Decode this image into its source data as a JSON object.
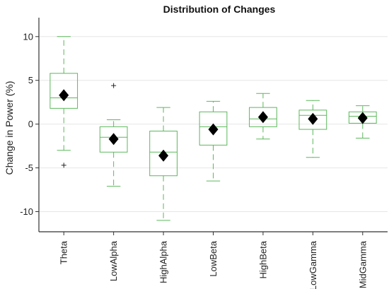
{
  "chart_data": {
    "type": "box",
    "title": "Distribution of Changes",
    "xlabel": "",
    "ylabel": "Change in Power (%)",
    "ylim": [
      -12.3,
      12
    ],
    "yticks": [
      -10,
      -5,
      0,
      5,
      10
    ],
    "grid": "horizontal",
    "box_color": "#5cb85c",
    "mean_marker": "black-diamond",
    "categories": [
      "Theta",
      "LowAlpha",
      "HighAlpha",
      "LowBeta",
      "HighBeta",
      "LowGamma",
      "MidGamma"
    ],
    "boxes": [
      {
        "name": "Theta",
        "whislo": -3.0,
        "q1": 1.8,
        "median": 3.0,
        "q3": 5.8,
        "whishi": 10.0,
        "mean": 3.3,
        "fliers": [
          -4.7
        ]
      },
      {
        "name": "LowAlpha",
        "whislo": -7.1,
        "q1": -3.2,
        "median": -1.5,
        "q3": -0.3,
        "whishi": 0.5,
        "mean": -1.7,
        "fliers": [
          4.4
        ]
      },
      {
        "name": "HighAlpha",
        "whislo": -11.0,
        "q1": -5.9,
        "median": -3.2,
        "q3": -0.8,
        "whishi": 1.9,
        "mean": -3.6,
        "fliers": []
      },
      {
        "name": "LowBeta",
        "whislo": -6.5,
        "q1": -2.4,
        "median": -0.3,
        "q3": 1.4,
        "whishi": 2.6,
        "mean": -0.6,
        "fliers": []
      },
      {
        "name": "HighBeta",
        "whislo": -1.7,
        "q1": -0.3,
        "median": 0.6,
        "q3": 1.9,
        "whishi": 3.5,
        "mean": 0.8,
        "fliers": []
      },
      {
        "name": "LowGamma",
        "whislo": -3.8,
        "q1": -0.6,
        "median": 1.0,
        "q3": 1.6,
        "whishi": 2.7,
        "mean": 0.6,
        "fliers": []
      },
      {
        "name": "MidGamma",
        "whislo": -1.6,
        "q1": 0.1,
        "median": 0.9,
        "q3": 1.4,
        "whishi": 2.1,
        "mean": 0.7,
        "fliers": []
      }
    ]
  }
}
